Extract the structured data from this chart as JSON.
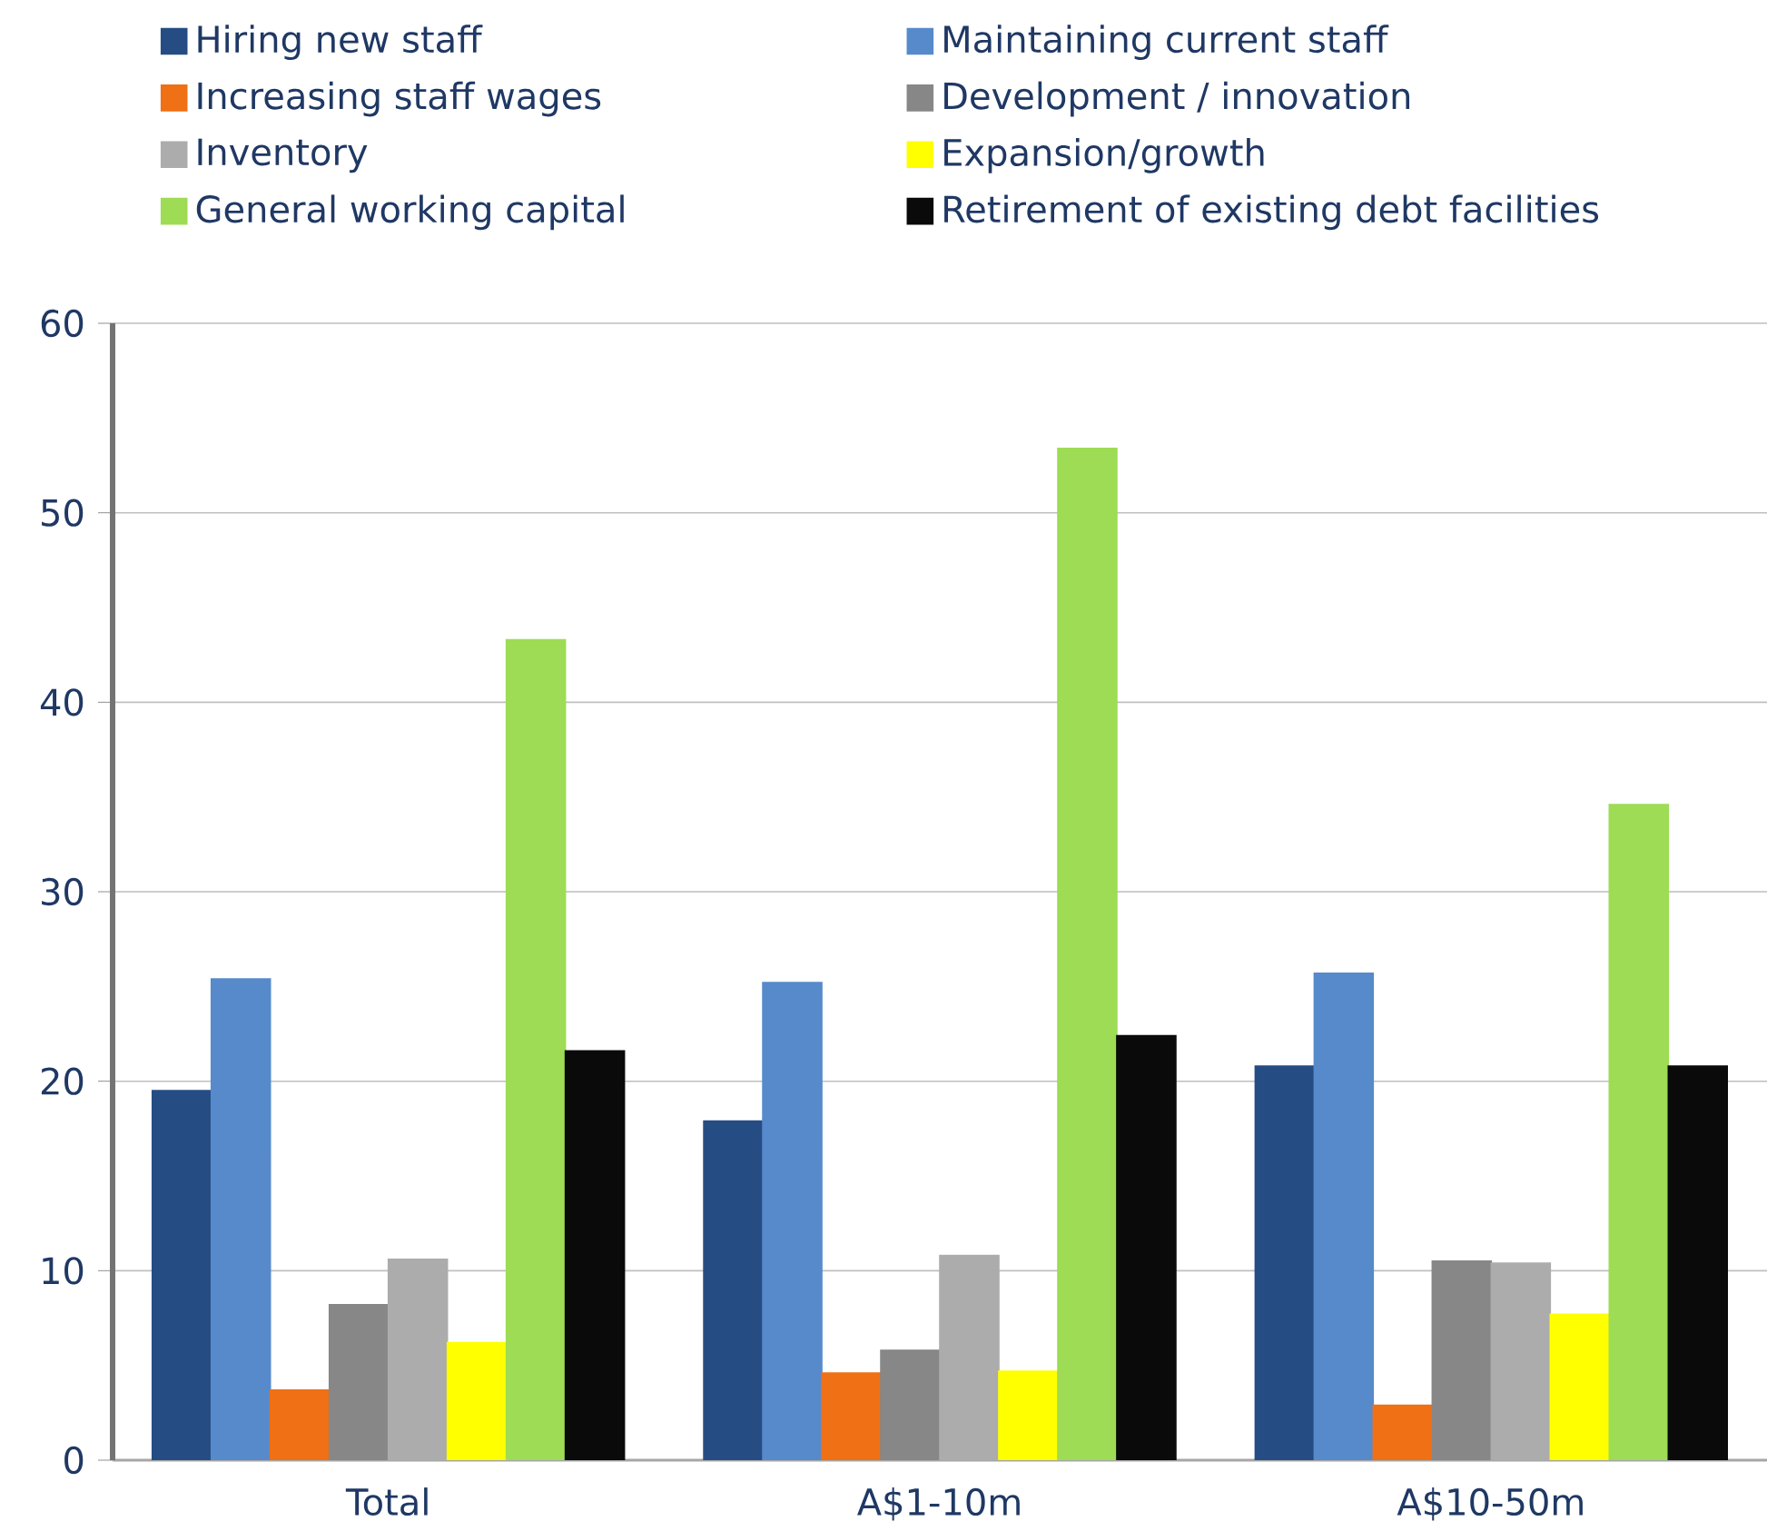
{
  "chart_data": {
    "type": "bar",
    "categories": [
      "Total",
      "A$1-10m",
      "A$10-50m"
    ],
    "series": [
      {
        "name": "Hiring new staff",
        "color": "#254d84",
        "values": [
          19.5,
          17.9,
          20.8
        ]
      },
      {
        "name": "Maintaining current staff",
        "color": "#578acb",
        "values": [
          25.4,
          25.2,
          25.7
        ]
      },
      {
        "name": "Increasing staff wages",
        "color": "#f07016",
        "values": [
          3.7,
          4.6,
          2.9
        ]
      },
      {
        "name": "Development / innovation",
        "color": "#878787",
        "values": [
          8.2,
          5.8,
          10.5
        ]
      },
      {
        "name": "Inventory",
        "color": "#acacac",
        "values": [
          10.6,
          10.8,
          10.4
        ]
      },
      {
        "name": "Expansion/growth",
        "color": "#ffff00",
        "values": [
          6.2,
          4.7,
          7.7
        ]
      },
      {
        "name": "General working capital",
        "color": "#9ddc54",
        "values": [
          43.3,
          53.4,
          34.6
        ]
      },
      {
        "name": "Retirement of existing debt facilities",
        "color": "#0a0a0a",
        "values": [
          21.6,
          22.4,
          20.8
        ]
      }
    ],
    "ylim": [
      0,
      60
    ],
    "yticks": [
      0,
      10,
      20,
      30,
      40,
      50,
      60
    ],
    "grid": "y",
    "legend": "top"
  }
}
